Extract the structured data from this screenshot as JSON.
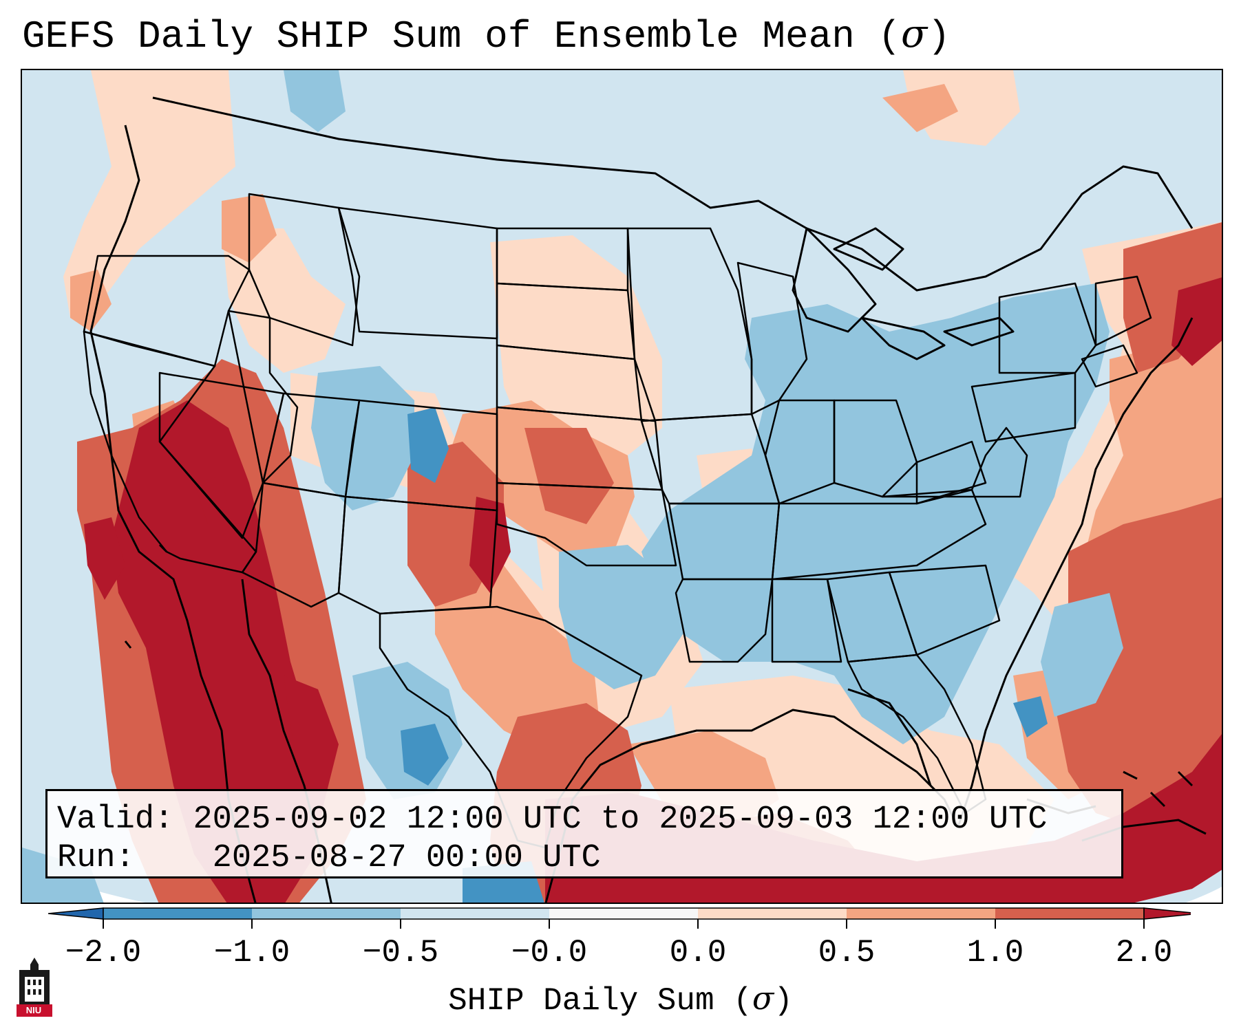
{
  "title": {
    "text": "GEFS Daily SHIP Sum of Ensemble Mean (",
    "sigma": "σ",
    "close": ")"
  },
  "validity": {
    "valid_label": "Valid:",
    "valid_range": "2025-09-02 12:00 UTC to 2025-09-03 12:00 UTC",
    "run_label": "Run:",
    "run_time": "2025-08-27 00:00 UTC"
  },
  "colorbar": {
    "label_text": "SHIP Daily Sum (",
    "label_sigma": "σ",
    "label_close": ")",
    "tick_labels": [
      "−2.0",
      "−1.0",
      "−0.5",
      "−0.0",
      "0.0",
      "0.5",
      "1.0",
      "2.0"
    ],
    "bins": [
      {
        "range": "< -2.0",
        "color": "#2166ac"
      },
      {
        "range": "-2.0 to -1.0",
        "color": "#4393c3"
      },
      {
        "range": "-1.0 to -0.5",
        "color": "#92c5de"
      },
      {
        "range": "-0.5 to -0.0",
        "color": "#d1e5f0"
      },
      {
        "range": "-0.0 to 0.0",
        "color": "#f7f7f7"
      },
      {
        "range": "0.0 to 0.5",
        "color": "#fddbc7"
      },
      {
        "range": "0.5 to 1.0",
        "color": "#f4a582"
      },
      {
        "range": "1.0 to 2.0",
        "color": "#d6604d"
      },
      {
        "range": "> 2.0",
        "color": "#b2182b"
      }
    ]
  },
  "logo": {
    "text": "NIU",
    "icon": "university-tower-icon"
  },
  "map_regions": [
    {
      "name": "California & Southwest deserts",
      "category": "1.0 to 2.0+"
    },
    {
      "name": "Southern High Plains / New Mexico",
      "category": "0.5 to 2.0"
    },
    {
      "name": "Northern Rockies & Great Plains",
      "category": "-0.5 to 0.5"
    },
    {
      "name": "Mississippi Valley, Southeast & Great Lakes",
      "category": "-1.0 to -0.5"
    },
    {
      "name": "Gulf of Mexico",
      "category": "0.0 to 1.0"
    },
    {
      "name": "Western Atlantic / Caribbean",
      "category": "1.0 to 2.0+"
    }
  ]
}
